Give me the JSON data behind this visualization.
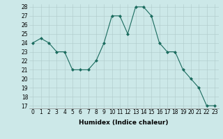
{
  "x": [
    0,
    1,
    2,
    3,
    4,
    5,
    6,
    7,
    8,
    9,
    10,
    11,
    12,
    13,
    14,
    15,
    16,
    17,
    18,
    19,
    20,
    21,
    22,
    23
  ],
  "y": [
    24,
    24.5,
    24,
    23,
    23,
    21,
    21,
    21,
    22,
    24,
    27,
    27,
    25,
    28,
    28,
    27,
    24,
    23,
    23,
    21,
    20,
    19,
    17,
    17
  ],
  "line_color": "#1a6b5e",
  "marker_color": "#1a6b5e",
  "bg_color": "#cce8e8",
  "xlabel": "Humidex (Indice chaleur)",
  "ylim_min": 17,
  "ylim_max": 28,
  "yticks": [
    17,
    18,
    19,
    20,
    21,
    22,
    23,
    24,
    25,
    26,
    27,
    28
  ],
  "xticks": [
    0,
    1,
    2,
    3,
    4,
    5,
    6,
    7,
    8,
    9,
    10,
    11,
    12,
    13,
    14,
    15,
    16,
    17,
    18,
    19,
    20,
    21,
    22,
    23
  ],
  "label_fontsize": 6.5,
  "tick_fontsize": 5.5
}
